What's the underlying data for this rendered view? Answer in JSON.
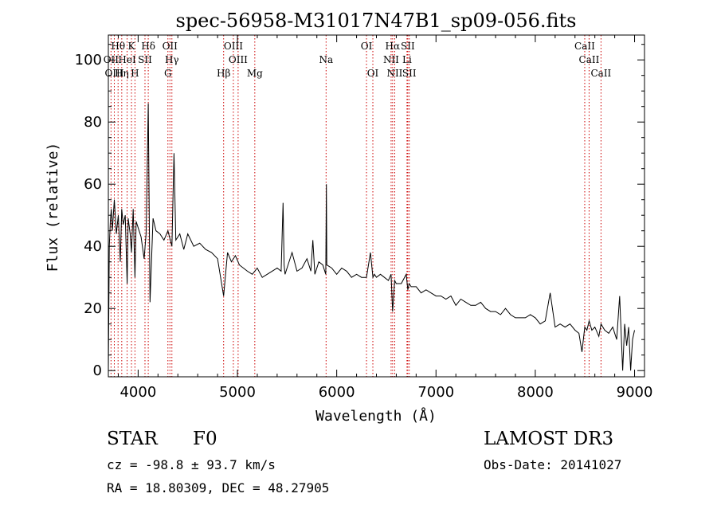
{
  "chart_data": {
    "type": "line",
    "title": "spec-56958-M31017N47B1_sp09-056.fits",
    "xlabel": "Wavelength (Å)",
    "ylabel": "Flux (relative)",
    "xlim": [
      3700,
      9100
    ],
    "ylim": [
      -2,
      108
    ],
    "x_ticks": [
      4000,
      5000,
      6000,
      7000,
      8000,
      9000
    ],
    "x_tick_labels": [
      "4000",
      "5000",
      "6000",
      "7000",
      "8000",
      "9000"
    ],
    "y_ticks": [
      0,
      20,
      40,
      60,
      80,
      100
    ],
    "y_tick_labels": [
      "0",
      "20",
      "40",
      "60",
      "80",
      "100"
    ],
    "series": [
      {
        "name": "flux",
        "x": [
          3700,
          3710,
          3720,
          3730,
          3740,
          3760,
          3780,
          3800,
          3820,
          3835,
          3850,
          3870,
          3889,
          3900,
          3920,
          3933,
          3950,
          3968,
          3980,
          4000,
          4030,
          4060,
          4080,
          4102,
          4120,
          4150,
          4180,
          4220,
          4260,
          4300,
          4340,
          4361,
          4380,
          4420,
          4460,
          4500,
          4560,
          4620,
          4680,
          4740,
          4800,
          4861,
          4900,
          4940,
          4980,
          5020,
          5060,
          5100,
          5150,
          5200,
          5250,
          5300,
          5350,
          5400,
          5440,
          5460,
          5470,
          5480,
          5500,
          5550,
          5600,
          5650,
          5700,
          5740,
          5760,
          5780,
          5820,
          5860,
          5890,
          5896,
          5900,
          5950,
          6000,
          6050,
          6100,
          6150,
          6200,
          6250,
          6300,
          6340,
          6365,
          6380,
          6400,
          6440,
          6480,
          6520,
          6548,
          6563,
          6584,
          6600,
          6650,
          6700,
          6716,
          6730,
          6750,
          6800,
          6850,
          6900,
          6950,
          7000,
          7050,
          7100,
          7150,
          7200,
          7250,
          7300,
          7350,
          7400,
          7450,
          7500,
          7550,
          7600,
          7650,
          7700,
          7750,
          7800,
          7850,
          7900,
          7950,
          8000,
          8050,
          8100,
          8150,
          8200,
          8250,
          8300,
          8350,
          8400,
          8440,
          8470,
          8498,
          8520,
          8542,
          8570,
          8600,
          8640,
          8662,
          8700,
          8740,
          8780,
          8820,
          8850,
          8880,
          8900,
          8920,
          8940,
          8960,
          8980,
          9000
        ],
        "y": [
          0,
          40,
          48,
          52,
          45,
          55,
          44,
          50,
          35,
          52,
          47,
          50,
          28,
          49,
          44,
          38,
          52,
          30,
          48,
          46,
          43,
          36,
          44,
          86,
          22,
          49,
          45,
          44,
          42,
          45,
          40,
          70,
          42,
          44,
          39,
          44,
          40,
          41,
          39,
          38,
          36,
          24,
          38,
          35,
          37,
          34,
          33,
          32,
          31,
          33,
          30,
          31,
          32,
          33,
          32,
          54,
          34,
          31,
          33,
          38,
          32,
          33,
          36,
          32,
          42,
          31,
          35,
          34,
          31,
          60,
          34,
          33,
          31,
          33,
          32,
          30,
          31,
          30,
          30,
          38,
          30,
          31,
          30,
          31,
          30,
          29,
          31,
          19,
          29,
          28,
          28,
          31,
          26,
          28,
          27,
          27,
          25,
          26,
          25,
          24,
          24,
          23,
          24,
          21,
          23,
          22,
          21,
          21,
          22,
          20,
          19,
          19,
          18,
          20,
          18,
          17,
          17,
          17,
          18,
          17,
          15,
          16,
          25,
          14,
          15,
          14,
          15,
          13,
          12,
          6,
          14,
          13,
          16,
          13,
          14,
          11,
          15,
          13,
          12,
          14,
          10,
          24,
          0,
          15,
          8,
          14,
          0,
          10,
          13
        ]
      }
    ],
    "line_markers": [
      {
        "label": "Hθ",
        "x": 3798,
        "row": 1
      },
      {
        "label": "K",
        "x": 3933,
        "row": 1
      },
      {
        "label": "Hδ",
        "x": 4102,
        "row": 1
      },
      {
        "label": "OII",
        "x": 4320,
        "row": 1
      },
      {
        "label": "OIII",
        "x": 4959,
        "row": 1
      },
      {
        "label": "OI",
        "x": 6300,
        "row": 1
      },
      {
        "label": "Hα",
        "x": 6563,
        "row": 1
      },
      {
        "label": "SII",
        "x": 6716,
        "row": 1
      },
      {
        "label": "CaII",
        "x": 8498,
        "row": 1
      },
      {
        "label": "OII",
        "x": 3727,
        "row": 2
      },
      {
        "label": "HeI",
        "x": 3889,
        "row": 2
      },
      {
        "label": "SII",
        "x": 4069,
        "row": 2
      },
      {
        "label": "Hγ",
        "x": 4340,
        "row": 2
      },
      {
        "label": "OIII",
        "x": 5007,
        "row": 2
      },
      {
        "label": "Na",
        "x": 5893,
        "row": 2
      },
      {
        "label": "NII",
        "x": 6548,
        "row": 2
      },
      {
        "label": "Li",
        "x": 6708,
        "row": 2
      },
      {
        "label": "CaII",
        "x": 8542,
        "row": 2
      },
      {
        "label": "OIII",
        "x": 3760,
        "row": 3
      },
      {
        "label": "Hη",
        "x": 3835,
        "row": 3
      },
      {
        "label": "H",
        "x": 3968,
        "row": 3
      },
      {
        "label": "G",
        "x": 4300,
        "row": 3
      },
      {
        "label": "Hβ",
        "x": 4861,
        "row": 3
      },
      {
        "label": "Mg",
        "x": 5175,
        "row": 3
      },
      {
        "label": "OI",
        "x": 6364,
        "row": 3
      },
      {
        "label": "NII",
        "x": 6584,
        "row": 3
      },
      {
        "label": "SII",
        "x": 6731,
        "row": 3
      },
      {
        "label": "CaII",
        "x": 8662,
        "row": 3
      }
    ]
  },
  "info": {
    "object_class": "STAR",
    "subclass": "F0",
    "survey": "LAMOST DR3",
    "redshift_line": "cz = -98.8 ± 93.7 km/s",
    "obs_date_line": "Obs-Date: 20141027",
    "coords_line": "RA =  18.80309, DEC =  48.27905"
  },
  "colors": {
    "marker_line": "#cc0000",
    "spectrum": "#000000"
  }
}
